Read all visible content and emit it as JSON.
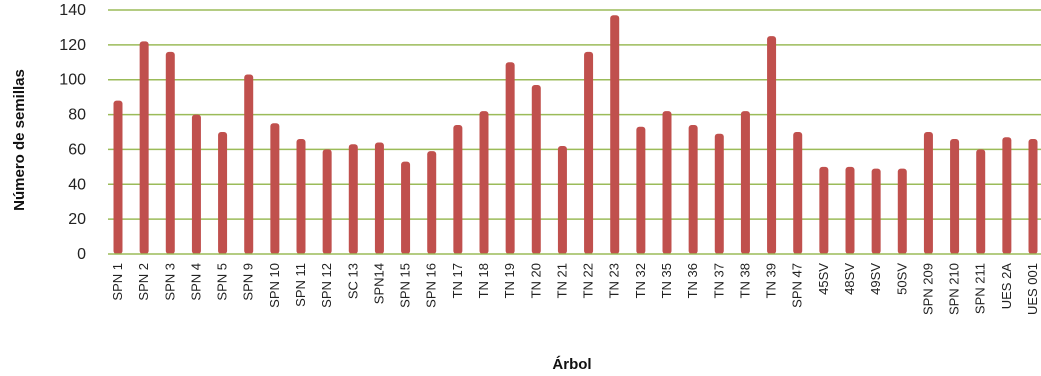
{
  "chart_data": {
    "type": "bar",
    "title": "",
    "xlabel": "Árbol",
    "ylabel": "Número de semillas",
    "ylim": [
      0,
      140
    ],
    "yticks": [
      0,
      20,
      40,
      60,
      80,
      100,
      120,
      140
    ],
    "grid": true,
    "legend": "none",
    "bar_color": "#c0504d",
    "grid_color": "#9bbb59",
    "categories": [
      "SPN 1",
      "SPN 2",
      "SPN 3",
      "SPN 4",
      "SPN 5",
      "SPN 9",
      "SPN 10",
      "SPN 11",
      "SPN 12",
      "SC 13",
      "SPN14",
      "SPN 15",
      "SPN 16",
      "TN 17",
      "TN 18",
      "TN 19",
      "TN 20",
      "TN 21",
      "TN 22",
      "TN 23",
      "TN 32",
      "TN 35",
      "TN 36",
      "TN 37",
      "TN 38",
      "TN 39",
      "SPN 47",
      "45SV",
      "48SV",
      "49SV",
      "50SV",
      "SPN 209",
      "SPN 210",
      "SPN 211",
      "UES 2A",
      "UES 001"
    ],
    "values": [
      88,
      122,
      116,
      80,
      70,
      103,
      75,
      66,
      60,
      63,
      64,
      53,
      59,
      74,
      82,
      110,
      97,
      62,
      116,
      137,
      73,
      82,
      74,
      69,
      82,
      125,
      70,
      50,
      50,
      49,
      49,
      70,
      66,
      60,
      67,
      66
    ]
  }
}
